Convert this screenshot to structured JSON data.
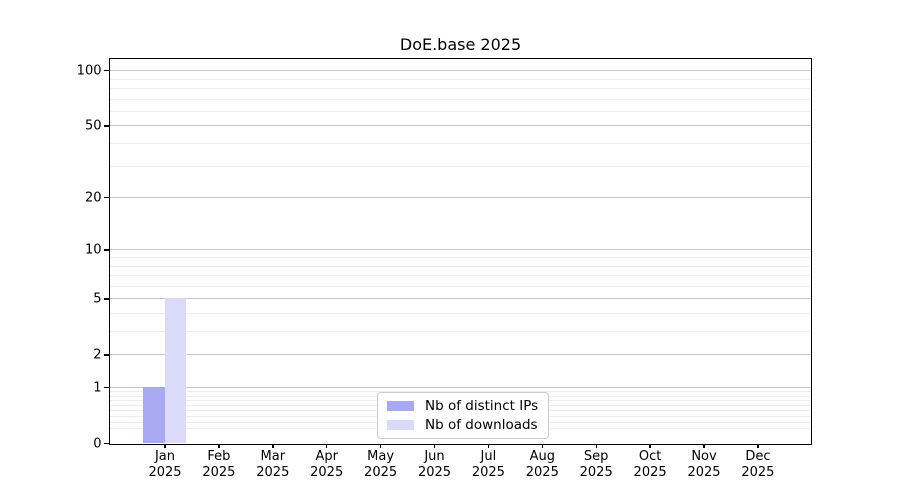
{
  "chart_data": {
    "type": "bar",
    "title": "DoE.base 2025",
    "x_tick_months": [
      "Jan",
      "Feb",
      "Mar",
      "Apr",
      "May",
      "Jun",
      "Jul",
      "Aug",
      "Sep",
      "Oct",
      "Nov",
      "Dec"
    ],
    "x_tick_year": "2025",
    "y_major_ticks": [
      0,
      1,
      2,
      5,
      10,
      20,
      50,
      100
    ],
    "y_minor_ticks": [
      0.2,
      0.3,
      0.4,
      0.5,
      0.6,
      0.7,
      0.8,
      0.9,
      3,
      4,
      6,
      7,
      8,
      9,
      30,
      40,
      60,
      70,
      80,
      90
    ],
    "y_scale": "log1p",
    "ylim": [
      0,
      115
    ],
    "grid": "horizontal-only",
    "legend_position": "lower center",
    "series": [
      {
        "name": "Nb of distinct IPs",
        "color": "#a8a8f3",
        "values": [
          1,
          0,
          0,
          0,
          0,
          0,
          0,
          0,
          0,
          0,
          0,
          0
        ]
      },
      {
        "name": "Nb of downloads",
        "color": "#dbdbf9",
        "values": [
          5,
          0,
          0,
          0,
          0,
          0,
          0,
          0,
          0,
          0,
          0,
          0
        ]
      }
    ]
  },
  "colors": {
    "background": "#ffffff",
    "axis": "#000000",
    "grid_major": "#c8c8c8",
    "grid_minor": "#ededed",
    "legend_border": "#cccccc",
    "text": "#000000"
  }
}
